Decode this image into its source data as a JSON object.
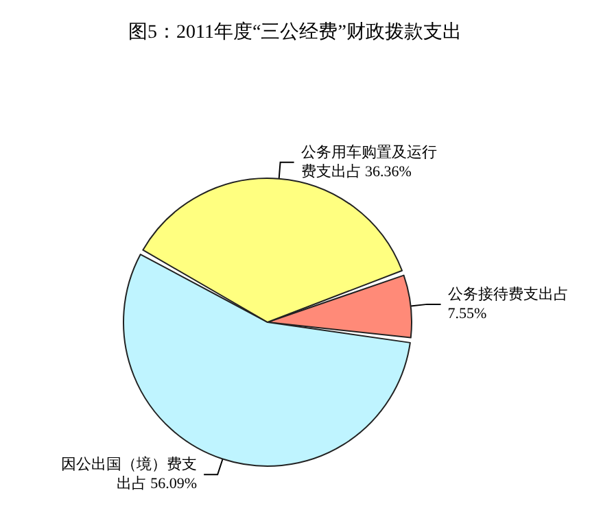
{
  "chart_data": {
    "type": "pie",
    "title": "图5：2011年度“三公经费”财政拨款支出",
    "categories": [
      "公务接待费支出占",
      "因公出国（境）费支出占",
      "公务用车购置及运行费支出占"
    ],
    "values": [
      7.55,
      56.09,
      36.36
    ],
    "colors": [
      "#ff8a78",
      "#bff4ff",
      "#ffff80"
    ],
    "value_labels": [
      "7.55%",
      "56.09%",
      "36.36%"
    ],
    "legend": false
  }
}
